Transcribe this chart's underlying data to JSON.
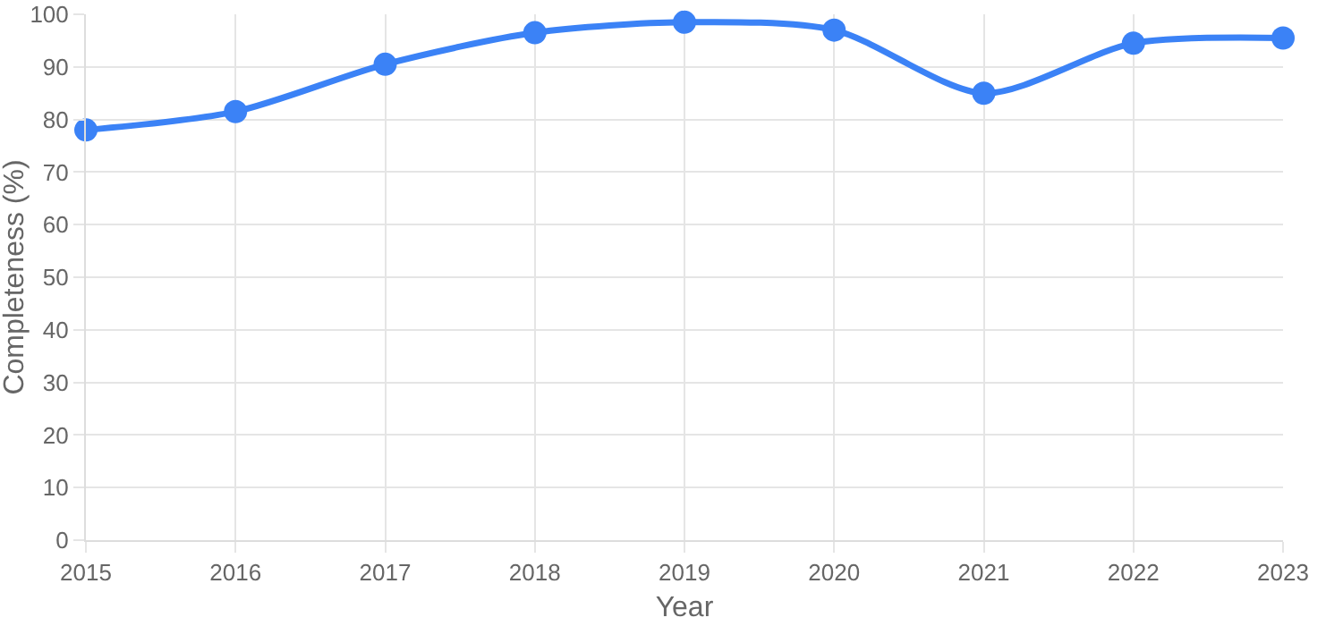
{
  "chart_data": {
    "type": "line",
    "xlabel": "Year",
    "ylabel": "Completeness (%)",
    "categories": [
      "2015",
      "2016",
      "2017",
      "2018",
      "2019",
      "2020",
      "2021",
      "2022",
      "2023"
    ],
    "series": [
      {
        "color": "#3b82f6",
        "values": [
          78,
          81.5,
          90.5,
          96.5,
          98.5,
          97,
          85,
          94.5,
          95.5
        ]
      }
    ],
    "ylim": [
      0,
      100
    ],
    "yticks": [
      0,
      10,
      20,
      30,
      40,
      50,
      60,
      70,
      80,
      90,
      100
    ],
    "grid": true,
    "marker": "circle",
    "line_style": "solid"
  }
}
